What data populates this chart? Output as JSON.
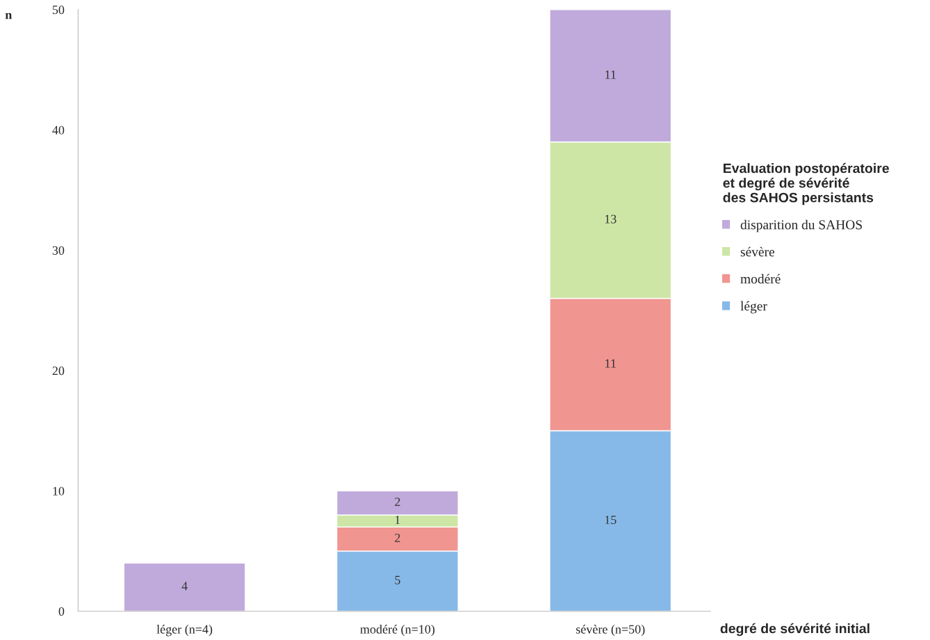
{
  "chart_data": {
    "type": "bar",
    "stacked": true,
    "categories": [
      "léger (n=4)",
      "modéré (n=10)",
      "sévère (n=50)"
    ],
    "series": [
      {
        "name": "léger",
        "color": "#86b9e8",
        "values": [
          0,
          5,
          15
        ],
        "value_labels": [
          null,
          "5",
          "15"
        ]
      },
      {
        "name": "modéré",
        "color": "#f09590",
        "values": [
          0,
          2,
          11
        ],
        "value_labels": [
          null,
          "2",
          "11"
        ]
      },
      {
        "name": "sévère",
        "color": "#cde6a6",
        "values": [
          0,
          1,
          13
        ],
        "value_labels": [
          null,
          "1",
          "13"
        ]
      },
      {
        "name": "disparition du SAHOS",
        "color": "#c0aadb",
        "values": [
          4,
          2,
          11
        ],
        "value_labels": [
          "4",
          "2",
          "11"
        ]
      }
    ],
    "ylabel": "n",
    "xlabel": "degré de sévérité initial",
    "legend_title": "Evaluation postopératoire\net degré de sévérité\ndes SAHOS persistants",
    "ylim": [
      0,
      50
    ],
    "yticks": [
      0,
      10,
      20,
      30,
      40,
      50
    ],
    "grid": false,
    "legend": "right"
  }
}
